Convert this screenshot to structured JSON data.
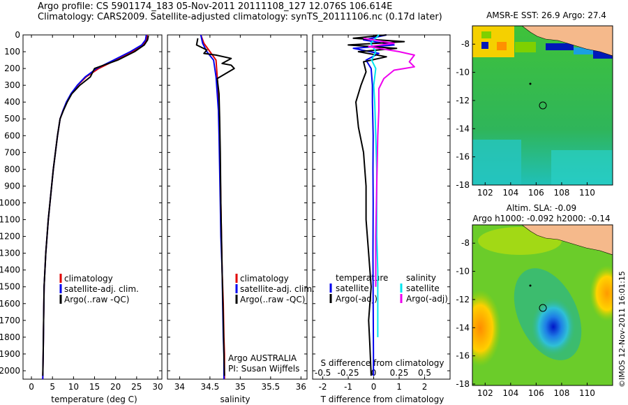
{
  "header": {
    "line1": "Argo profile: CS 5901174_183 05-Nov-2011 20111108_127 12.076S 106.614E",
    "line2": "Climatology: CARS2009. Satellite-adjusted climatology: synTS_20111106.nc (0.17d later)"
  },
  "colors": {
    "climatology": "#e00000",
    "satellite": "#0000ee",
    "argo": "#000000",
    "sat_salinity": "#00e5ee",
    "argo_salinity": "#ee00ee"
  },
  "chart_data": [
    {
      "type": "line",
      "xlabel": "temperature (deg C)",
      "xlim": [
        -2,
        31
      ],
      "ylim": [
        0,
        2050
      ],
      "xticks": [
        "0",
        "5",
        "10",
        "15",
        "20",
        "25",
        "30"
      ],
      "yticks": [
        "0",
        "100",
        "200",
        "300",
        "400",
        "500",
        "600",
        "700",
        "800",
        "900",
        "1000",
        "1100",
        "1200",
        "1300",
        "1400",
        "1500",
        "1600",
        "1700",
        "1800",
        "1900",
        "2000"
      ],
      "legend": [
        "climatology",
        "satellite-adj. clim.",
        "Argo(..raw -QC)"
      ],
      "series": [
        {
          "key": "climatology",
          "x": [
            27.5,
            27.3,
            26.5,
            24,
            20,
            16,
            13,
            11,
            9.5,
            8.4,
            7.5,
            6.8,
            6.2,
            5.7,
            5.2,
            4.8,
            4.4,
            4.0,
            3.7,
            3.4,
            3.2,
            3.0,
            2.9,
            2.8,
            2.7
          ],
          "y": [
            0,
            30,
            60,
            100,
            150,
            200,
            250,
            300,
            350,
            400,
            450,
            500,
            600,
            700,
            800,
            900,
            1000,
            1100,
            1200,
            1300,
            1400,
            1500,
            1700,
            1900,
            2050
          ]
        },
        {
          "key": "satellite",
          "x": [
            27.3,
            27.1,
            26.2,
            23.5,
            19.5,
            15.5,
            12.8,
            10.9,
            9.4,
            8.3,
            7.5,
            6.8,
            6.2,
            5.7,
            5.2,
            4.8,
            4.4,
            4.0,
            3.7,
            3.4,
            3.2,
            3.0,
            2.9,
            2.8,
            2.7
          ],
          "y": [
            0,
            30,
            60,
            100,
            150,
            200,
            250,
            300,
            350,
            400,
            450,
            500,
            600,
            700,
            800,
            900,
            1000,
            1100,
            1200,
            1300,
            1400,
            1500,
            1700,
            1900,
            2050
          ]
        },
        {
          "key": "argo",
          "x": [
            27.8,
            27.6,
            26.8,
            24.5,
            20.5,
            15.0,
            14.0,
            11.5,
            9.6,
            8.5,
            7.6,
            6.8,
            6.2,
            5.7,
            5.2,
            4.8,
            4.4,
            4.0,
            3.7,
            3.4,
            3.2,
            3.0,
            2.9,
            2.8,
            2.7
          ],
          "y": [
            5,
            30,
            60,
            100,
            150,
            200,
            250,
            300,
            350,
            400,
            450,
            500,
            600,
            700,
            800,
            900,
            1000,
            1100,
            1200,
            1300,
            1400,
            1500,
            1700,
            1900,
            2030
          ]
        }
      ]
    },
    {
      "type": "line",
      "xlabel": "salinity",
      "xlim": [
        33.8,
        36.1
      ],
      "ylim": [
        0,
        2050
      ],
      "xticks": [
        "34",
        "34.5",
        "35",
        "35.5",
        "36"
      ],
      "legend": [
        "climatology",
        "satellite-adj. clim.",
        "Argo(..raw -QC)"
      ],
      "annotation": [
        "Argo AUSTRALIA",
        "PI: Susan Wijffels"
      ],
      "series": [
        {
          "key": "climatology",
          "x": [
            34.35,
            34.4,
            34.5,
            34.6,
            34.62,
            34.64,
            34.65,
            34.66,
            34.67,
            34.68,
            34.69,
            34.7,
            34.72,
            34.73,
            34.74,
            34.74
          ],
          "y": [
            0,
            50,
            100,
            150,
            250,
            350,
            450,
            600,
            800,
            1000,
            1200,
            1400,
            1600,
            1800,
            1900,
            2050
          ]
        },
        {
          "key": "satellite",
          "x": [
            34.35,
            34.38,
            34.45,
            34.56,
            34.6,
            34.62,
            34.64,
            34.65,
            34.66,
            34.67,
            34.68,
            34.7,
            34.71,
            34.72,
            34.73,
            34.73
          ],
          "y": [
            0,
            50,
            100,
            150,
            250,
            350,
            450,
            600,
            800,
            1000,
            1200,
            1400,
            1600,
            1800,
            1900,
            2050
          ]
        },
        {
          "key": "argo",
          "x": [
            34.3,
            34.28,
            34.45,
            34.4,
            34.6,
            34.85,
            34.8,
            34.7,
            34.85,
            34.9,
            34.62,
            34.65,
            34.66,
            34.67,
            34.68,
            34.7,
            34.72,
            34.73,
            34.74
          ],
          "y": [
            20,
            60,
            90,
            110,
            120,
            140,
            150,
            170,
            180,
            200,
            260,
            350,
            500,
            700,
            1000,
            1400,
            1700,
            1900,
            2030
          ]
        }
      ]
    },
    {
      "type": "line",
      "xlabel": "T difference from climatology",
      "xlabel2": "S difference from climatology",
      "xlim": [
        -2.4,
        3
      ],
      "ylim": [
        0,
        2050
      ],
      "xticks": [
        "-2",
        "-1",
        "0",
        "1",
        "2"
      ],
      "xticks2": [
        "-0.5",
        "-0.25",
        "0",
        "0.25",
        "0.5"
      ],
      "legend_left_title": "temperature",
      "legend_right_title": "salinity",
      "legend_left": [
        "satellite",
        "Argo(-adj)"
      ],
      "legend_right": [
        "satellite",
        "Argo(-adj)"
      ],
      "series": [
        {
          "key": "satellite",
          "x": [
            0.5,
            -0.4,
            0.8,
            -0.8,
            0.2,
            -0.3,
            -0.1,
            -0.05,
            -0.05,
            -0.02,
            -0.03,
            -0.02,
            -0.03,
            -0.02,
            -0.01,
            -0.01
          ],
          "y": [
            0,
            30,
            60,
            80,
            110,
            150,
            200,
            300,
            400,
            600,
            800,
            1000,
            1300,
            1600,
            1900,
            2030
          ]
        },
        {
          "key": "argo",
          "x": [
            0.5,
            -0.8,
            1.2,
            -1.0,
            0.9,
            -0.6,
            0.5,
            -0.4,
            -0.3,
            -0.5,
            -0.7,
            -0.6,
            -0.4,
            -0.3,
            -0.3,
            -0.2,
            -0.1,
            -0.2,
            -0.15,
            -0.1
          ],
          "y": [
            0,
            20,
            40,
            60,
            80,
            100,
            130,
            160,
            220,
            300,
            400,
            550,
            700,
            900,
            1100,
            1300,
            1500,
            1700,
            1850,
            2030
          ]
        },
        {
          "key": "sat_salinity",
          "x": [
            0.05,
            -0.03,
            0.02,
            -0.02,
            0.02,
            0.0,
            0.01,
            0.02,
            0.03,
            0.03,
            0.03,
            0.04,
            0.04,
            0.04
          ],
          "y": [
            0,
            50,
            100,
            150,
            200,
            300,
            400,
            600,
            800,
            1000,
            1200,
            1400,
            1600,
            1800
          ]
        },
        {
          "key": "argo_salinity",
          "x": [
            -0.1,
            0.2,
            -0.05,
            0.25,
            0.4,
            0.35,
            0.4,
            0.3,
            0.2,
            0.1,
            0.05,
            0.05,
            0.04,
            0.03,
            0.02,
            0.02
          ],
          "y": [
            20,
            50,
            70,
            100,
            120,
            160,
            190,
            200,
            210,
            260,
            320,
            450,
            600,
            900,
            1200,
            1500
          ]
        }
      ]
    }
  ],
  "map_top": {
    "title": "AMSR-E SST: 26.9 Argo: 27.4",
    "xticks": [
      "102",
      "104",
      "106",
      "108",
      "110"
    ],
    "yticks": [
      "-8",
      "-10",
      "-12",
      "-14",
      "-16",
      "-18"
    ]
  },
  "map_bottom": {
    "title_line1": "Altim. SLA: -0.09",
    "title_line2": "Argo h1000: -0.092 h2000: -0.14",
    "xticks": [
      "102",
      "104",
      "106",
      "108",
      "110"
    ],
    "yticks": [
      "-8",
      "-10",
      "-12",
      "-14",
      "-16",
      "-18"
    ]
  },
  "stamp": "©IMOS 12-Nov-2011 16:01:15"
}
